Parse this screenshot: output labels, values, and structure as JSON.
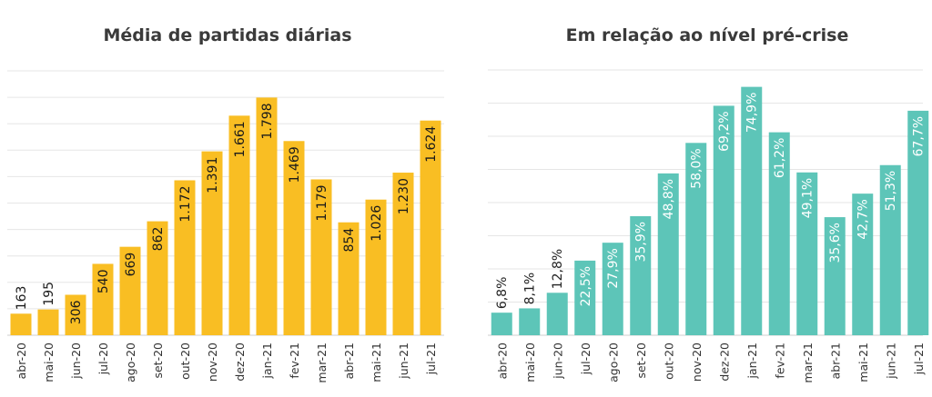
{
  "chart_data": [
    {
      "type": "bar",
      "title": "Média de partidas diárias",
      "categories": [
        "abr-20",
        "mai-20",
        "jun-20",
        "jul-20",
        "ago-20",
        "set-20",
        "out-20",
        "nov-20",
        "dez-20",
        "jan-21",
        "fev-21",
        "mar-21",
        "abr-21",
        "mai-21",
        "jun-21",
        "jul-21"
      ],
      "values": [
        163,
        195,
        306,
        540,
        669,
        862,
        1172,
        1391,
        1661,
        1798,
        1469,
        1179,
        854,
        1026,
        1230,
        1624
      ],
      "labels": [
        "163",
        "195",
        "306",
        "540",
        "669",
        "862",
        "1.172",
        "1.391",
        "1.661",
        "1.798",
        "1.469",
        "1.179",
        "854",
        "1.026",
        "1.230",
        "1.624"
      ],
      "xlabel": "",
      "ylabel": "",
      "ylim": [
        0,
        2000
      ],
      "grid": true,
      "bar_color": "#F9BE23"
    },
    {
      "type": "bar",
      "title": "Em relação ao nível pré-crise",
      "categories": [
        "abr-20",
        "mai-20",
        "jun-20",
        "jul-20",
        "ago-20",
        "set-20",
        "out-20",
        "nov-20",
        "dez-20",
        "jan-21",
        "fev-21",
        "mar-21",
        "abr-21",
        "mai-21",
        "jun-21",
        "jul-21"
      ],
      "values": [
        6.8,
        8.1,
        12.8,
        22.5,
        27.9,
        35.9,
        48.8,
        58.0,
        69.2,
        74.9,
        61.2,
        49.1,
        35.6,
        42.7,
        51.3,
        67.7
      ],
      "labels": [
        "6,8%",
        "8,1%",
        "12,8%",
        "22,5%",
        "27,9%",
        "35,9%",
        "48,8%",
        "58,0%",
        "69,2%",
        "74,9%",
        "61,2%",
        "49,1%",
        "35,6%",
        "42,7%",
        "51,3%",
        "67,7%"
      ],
      "xlabel": "",
      "ylabel": "",
      "ylim": [
        0,
        80
      ],
      "grid": true,
      "bar_color": "#5DC5B8"
    }
  ]
}
